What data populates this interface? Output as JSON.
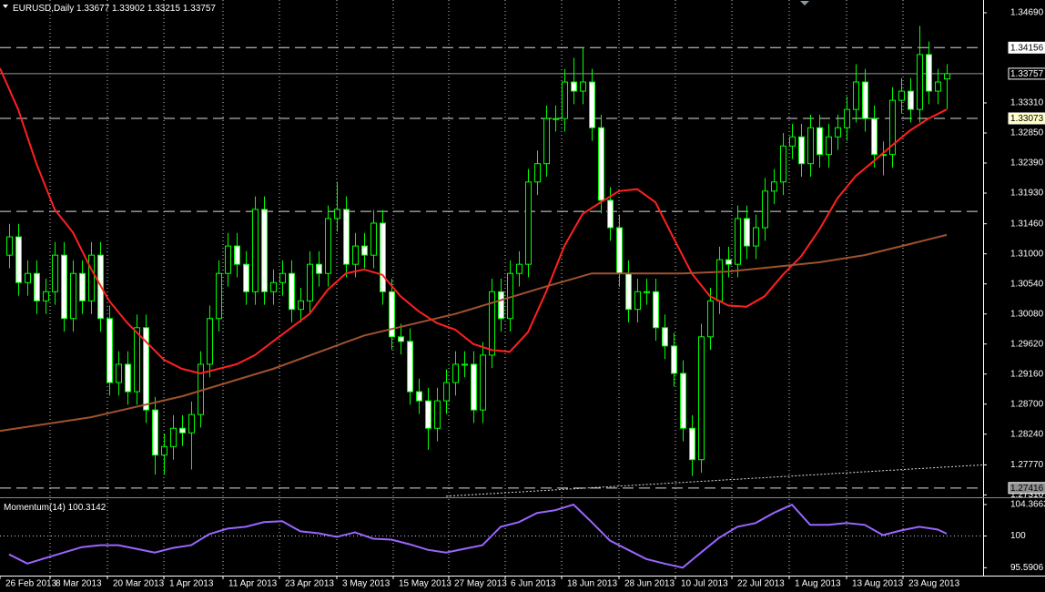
{
  "chart_data": [
    {
      "type": "candlestick",
      "title": "EURUSD,Daily",
      "color": "#00ff00",
      "bull_fill": "#000000",
      "bear_fill": "#ffffff",
      "xlim": [
        -1,
        107
      ],
      "ylim": [
        1.27288,
        1.34885
      ],
      "grid": true,
      "xticks": [
        {
          "value": -1,
          "label": "26 Feb 2013"
        },
        {
          "value": 4.5,
          "label": "8 Mar 2013"
        },
        {
          "value": 10.8,
          "label": "20 Mar 2013"
        },
        {
          "value": 17,
          "label": "1 Apr 2013"
        },
        {
          "value": 23.5,
          "label": "11 Apr 2013"
        },
        {
          "value": 29.7,
          "label": "23 Apr 2013"
        },
        {
          "value": 36,
          "label": "3 May 2013"
        },
        {
          "value": 42.2,
          "label": "15 May 2013"
        },
        {
          "value": 48.3,
          "label": "27 May 2013"
        },
        {
          "value": 54.5,
          "label": "6 Jun 2013"
        },
        {
          "value": 60.7,
          "label": "18 Jun 2013"
        },
        {
          "value": 67,
          "label": "28 Jun 2013"
        },
        {
          "value": 73.2,
          "label": "10 Jul 2013"
        },
        {
          "value": 79.4,
          "label": "22 Jul 2013"
        },
        {
          "value": 85.7,
          "label": "1 Aug 2013"
        },
        {
          "value": 92,
          "label": "13 Aug 2013"
        },
        {
          "value": 98.2,
          "label": "23 Aug 2013"
        }
      ],
      "yticks": [
        {
          "value": 1.3469,
          "label": "1.34690"
        },
        {
          "value": 1.3331,
          "label": "1.33310"
        },
        {
          "value": 1.3285,
          "label": "1.32850"
        },
        {
          "value": 1.3239,
          "label": "1.32390"
        },
        {
          "value": 1.3193,
          "label": "1.31930"
        },
        {
          "value": 1.3146,
          "label": "1.31460"
        },
        {
          "value": 1.31,
          "label": "1.31000"
        },
        {
          "value": 1.3054,
          "label": "1.30540"
        },
        {
          "value": 1.3008,
          "label": "1.30080"
        },
        {
          "value": 1.2962,
          "label": "1.29620"
        },
        {
          "value": 1.2916,
          "label": "1.29160"
        },
        {
          "value": 1.287,
          "label": "1.28700"
        },
        {
          "value": 1.2824,
          "label": "1.28240"
        },
        {
          "value": 1.2777,
          "label": "1.27770"
        },
        {
          "value": 1.2731,
          "label": "1.27310"
        }
      ],
      "levels": [
        {
          "value": 1.34156,
          "style": "dashed",
          "box": "#ffffff",
          "text_color": "#000000"
        },
        {
          "value": 1.33757,
          "style": "solid",
          "box": "#000000",
          "text_color": "#ffffff"
        },
        {
          "value": 1.33073,
          "style": "dashed",
          "box": "#ffffc8",
          "text_color": "#000000"
        },
        {
          "value": 1.3165,
          "style": "dashed"
        },
        {
          "value": 1.27416,
          "style": "dashed",
          "box": "#909090",
          "text_color": "#000000"
        }
      ],
      "trendline": {
        "x": [
          48,
          107
        ],
        "values": [
          1.2729,
          1.2777
        ]
      },
      "lines": [
        {
          "color": "#ff2020",
          "x": [
            -1,
            1,
            3,
            5,
            7,
            9,
            11,
            13,
            15,
            17,
            19,
            21,
            23,
            25,
            27,
            29,
            31,
            33,
            35,
            37,
            39,
            41,
            43,
            45,
            47,
            49,
            51,
            53,
            55,
            57,
            59,
            61,
            63,
            65,
            67,
            69,
            71,
            73,
            75,
            77,
            79,
            81,
            83,
            85,
            87,
            89,
            91,
            93,
            95,
            97,
            99,
            101,
            103
          ],
          "values": [
            1.3384,
            1.3321,
            1.3238,
            1.3168,
            1.3133,
            1.3077,
            1.3028,
            1.2994,
            1.2966,
            1.2938,
            1.2924,
            1.2917,
            1.2924,
            1.2931,
            1.2945,
            1.2966,
            1.2987,
            1.3008,
            1.3045,
            1.307,
            1.3076,
            1.3068,
            1.3035,
            1.3012,
            1.2994,
            1.2984,
            1.2962,
            1.2953,
            1.295,
            1.298,
            1.3042,
            1.3112,
            1.3161,
            1.3179,
            1.3196,
            1.3199,
            1.3179,
            1.3124,
            1.307,
            1.3035,
            1.3021,
            1.3019,
            1.3035,
            1.3068,
            1.3096,
            1.3137,
            1.3185,
            1.3219,
            1.3242,
            1.3266,
            1.3289,
            1.3307,
            1.3321
          ]
        },
        {
          "color": "#a0522d",
          "x": [
            -1,
            9,
            19,
            29,
            39,
            49,
            59,
            64,
            69,
            74,
            79,
            84,
            89,
            94,
            99,
            103
          ],
          "values": [
            1.2829,
            1.285,
            1.2882,
            1.2924,
            1.2975,
            1.3008,
            1.305,
            1.307,
            1.307,
            1.307,
            1.3073,
            1.308,
            1.3087,
            1.3098,
            1.3115,
            1.3129
          ]
        }
      ],
      "candles": [
        [
          1.3098,
          1.3146,
          1.3078,
          1.3126
        ],
        [
          1.3126,
          1.3146,
          1.3036,
          1.3056
        ],
        [
          1.3056,
          1.309,
          1.3036,
          1.307
        ],
        [
          1.307,
          1.309,
          1.3008,
          1.3028
        ],
        [
          1.3028,
          1.3062,
          1.3008,
          1.3042
        ],
        [
          1.3042,
          1.3118,
          1.3022,
          1.3098
        ],
        [
          1.3098,
          1.3118,
          1.2981,
          1.3001
        ],
        [
          1.3001,
          1.309,
          1.2981,
          1.307
        ],
        [
          1.307,
          1.309,
          1.3008,
          1.3028
        ],
        [
          1.3028,
          1.3118,
          1.3008,
          1.3098
        ],
        [
          1.3098,
          1.3118,
          1.2981,
          1.3001
        ],
        [
          1.3001,
          1.3021,
          1.2883,
          1.2903
        ],
        [
          1.2903,
          1.2951,
          1.2883,
          1.2931
        ],
        [
          1.2931,
          1.2951,
          1.2869,
          1.2889
        ],
        [
          1.2889,
          1.3007,
          1.2869,
          1.2987
        ],
        [
          1.2987,
          1.3007,
          1.2841,
          1.2861
        ],
        [
          1.2861,
          1.2881,
          1.2762,
          1.2792
        ],
        [
          1.2792,
          1.2825,
          1.2762,
          1.2805
        ],
        [
          1.2805,
          1.2853,
          1.2785,
          1.2833
        ],
        [
          1.2833,
          1.2853,
          1.2806,
          1.2826
        ],
        [
          1.2826,
          1.2874,
          1.277,
          1.2854
        ],
        [
          1.2854,
          1.2951,
          1.2834,
          1.2931
        ],
        [
          1.2931,
          1.3021,
          1.2911,
          1.3001
        ],
        [
          1.3001,
          1.309,
          1.2981,
          1.307
        ],
        [
          1.307,
          1.3132,
          1.305,
          1.3112
        ],
        [
          1.3112,
          1.3132,
          1.3064,
          1.3084
        ],
        [
          1.3084,
          1.3104,
          1.3022,
          1.3042
        ],
        [
          1.3042,
          1.3188,
          1.3022,
          1.3168
        ],
        [
          1.3168,
          1.3188,
          1.3022,
          1.3042
        ],
        [
          1.3042,
          1.3076,
          1.3022,
          1.3056
        ],
        [
          1.3056,
          1.309,
          1.3036,
          1.307
        ],
        [
          1.307,
          1.309,
          1.2995,
          1.3015
        ],
        [
          1.3015,
          1.3048,
          1.2995,
          1.3028
        ],
        [
          1.3028,
          1.3104,
          1.3008,
          1.3084
        ],
        [
          1.3084,
          1.3104,
          1.305,
          1.307
        ],
        [
          1.307,
          1.3174,
          1.305,
          1.3154
        ],
        [
          1.3154,
          1.321,
          1.3134,
          1.3168
        ],
        [
          1.3168,
          1.3188,
          1.3064,
          1.3084
        ],
        [
          1.3084,
          1.3132,
          1.3064,
          1.3112
        ],
        [
          1.3112,
          1.3132,
          1.3078,
          1.3098
        ],
        [
          1.3098,
          1.3167,
          1.3078,
          1.3147
        ],
        [
          1.3147,
          1.3167,
          1.3022,
          1.3042
        ],
        [
          1.3042,
          1.3062,
          1.2953,
          1.2973
        ],
        [
          1.2973,
          1.2993,
          1.2946,
          1.2966
        ],
        [
          1.2966,
          1.2986,
          1.2869,
          1.2889
        ],
        [
          1.2889,
          1.2909,
          1.2855,
          1.2875
        ],
        [
          1.2875,
          1.2895,
          1.28,
          1.2833
        ],
        [
          1.2833,
          1.2895,
          1.2813,
          1.2875
        ],
        [
          1.2875,
          1.2923,
          1.2855,
          1.2903
        ],
        [
          1.2903,
          1.2951,
          1.2883,
          1.2931
        ],
        [
          1.2931,
          1.2951,
          1.2911,
          1.2931
        ],
        [
          1.2931,
          1.2951,
          1.2841,
          1.2861
        ],
        [
          1.2861,
          1.2965,
          1.2841,
          1.2945
        ],
        [
          1.2945,
          1.3062,
          1.2925,
          1.3042
        ],
        [
          1.3042,
          1.3062,
          1.2981,
          1.3001
        ],
        [
          1.3001,
          1.309,
          1.2981,
          1.307
        ],
        [
          1.307,
          1.3104,
          1.305,
          1.3084
        ],
        [
          1.3084,
          1.323,
          1.3064,
          1.321
        ],
        [
          1.321,
          1.3258,
          1.319,
          1.3238
        ],
        [
          1.3238,
          1.3327,
          1.3218,
          1.3307
        ],
        [
          1.3307,
          1.3327,
          1.3287,
          1.3307
        ],
        [
          1.3307,
          1.3383,
          1.3287,
          1.3363
        ],
        [
          1.3363,
          1.34,
          1.3329,
          1.3349
        ],
        [
          1.3349,
          1.3416,
          1.3329,
          1.3363
        ],
        [
          1.3363,
          1.3383,
          1.3273,
          1.3293
        ],
        [
          1.3293,
          1.3313,
          1.3162,
          1.3182
        ],
        [
          1.3182,
          1.3202,
          1.312,
          1.314
        ],
        [
          1.314,
          1.316,
          1.305,
          1.307
        ],
        [
          1.307,
          1.309,
          1.2995,
          1.3015
        ],
        [
          1.3015,
          1.3062,
          1.2995,
          1.3042
        ],
        [
          1.3042,
          1.3062,
          1.3022,
          1.3042
        ],
        [
          1.3042,
          1.3062,
          1.2967,
          1.2987
        ],
        [
          1.2987,
          1.3007,
          1.2939,
          1.2959
        ],
        [
          1.2959,
          1.2979,
          1.2897,
          1.2917
        ],
        [
          1.2917,
          1.2937,
          1.2813,
          1.2833
        ],
        [
          1.2833,
          1.2853,
          1.276,
          1.2785
        ],
        [
          1.2785,
          1.2993,
          1.2765,
          1.2973
        ],
        [
          1.2973,
          1.3048,
          1.2953,
          1.3028
        ],
        [
          1.3028,
          1.3111,
          1.3008,
          1.3091
        ],
        [
          1.3091,
          1.3111,
          1.3064,
          1.3084
        ],
        [
          1.3084,
          1.3174,
          1.3064,
          1.3154
        ],
        [
          1.3154,
          1.3174,
          1.3092,
          1.3112
        ],
        [
          1.3112,
          1.316,
          1.3092,
          1.314
        ],
        [
          1.314,
          1.3216,
          1.312,
          1.3196
        ],
        [
          1.3196,
          1.323,
          1.3176,
          1.321
        ],
        [
          1.321,
          1.3285,
          1.319,
          1.3265
        ],
        [
          1.3265,
          1.3299,
          1.3245,
          1.3279
        ],
        [
          1.3279,
          1.3299,
          1.3218,
          1.3238
        ],
        [
          1.3238,
          1.3313,
          1.3218,
          1.3293
        ],
        [
          1.3293,
          1.3313,
          1.3232,
          1.3252
        ],
        [
          1.3252,
          1.3299,
          1.3232,
          1.3279
        ],
        [
          1.3279,
          1.3313,
          1.3259,
          1.3293
        ],
        [
          1.3293,
          1.3341,
          1.3273,
          1.3321
        ],
        [
          1.3321,
          1.339,
          1.3301,
          1.3363
        ],
        [
          1.3363,
          1.3383,
          1.3287,
          1.3307
        ],
        [
          1.3307,
          1.3327,
          1.3232,
          1.3252
        ],
        [
          1.3252,
          1.3272,
          1.322,
          1.3252
        ],
        [
          1.3252,
          1.3355,
          1.3232,
          1.3335
        ],
        [
          1.3335,
          1.3369,
          1.3315,
          1.3349
        ],
        [
          1.3349,
          1.3369,
          1.3301,
          1.3321
        ],
        [
          1.3321,
          1.3449,
          1.3301,
          1.3405
        ],
        [
          1.3405,
          1.3425,
          1.3329,
          1.3349
        ],
        [
          1.3349,
          1.3383,
          1.3329,
          1.3363
        ],
        [
          1.33677,
          1.33902,
          1.33215,
          1.33757
        ]
      ]
    },
    {
      "type": "line",
      "title": "Momentum(14)",
      "color": "#9966ff",
      "ylim": [
        94.62,
        105.25
      ],
      "yticks": [
        104.3663,
        100,
        95.5906
      ],
      "levels": [
        100
      ],
      "x": [
        0,
        2,
        4,
        6,
        8,
        10,
        12,
        14,
        16,
        18,
        20,
        22,
        24,
        26,
        28,
        30,
        32,
        34,
        36,
        38,
        40,
        42,
        44,
        46,
        48,
        50,
        52,
        54,
        56,
        58,
        60,
        62,
        64,
        66,
        68,
        70,
        72,
        74,
        76,
        78,
        80,
        82,
        84,
        86,
        88,
        90,
        92,
        94,
        96,
        98,
        100,
        102,
        103
      ],
      "values": [
        97.44,
        96.16,
        96.93,
        97.7,
        98.46,
        98.72,
        98.72,
        98.21,
        97.7,
        98.34,
        98.72,
        100.26,
        101.02,
        101.28,
        101.92,
        102.05,
        100.64,
        100.38,
        99.87,
        100.51,
        99.62,
        99.49,
        98.85,
        98.08,
        97.7,
        98.21,
        98.72,
        101.28,
        101.92,
        103.2,
        103.58,
        104.3663,
        101.92,
        99.36,
        98.08,
        96.8,
        96.16,
        95.5906,
        97.7,
        99.74,
        101.28,
        101.79,
        103.2,
        104.35,
        101.54,
        101.54,
        101.79,
        101.54,
        100.13,
        100.77,
        101.28,
        100.9,
        100.3142
      ]
    }
  ]
}
